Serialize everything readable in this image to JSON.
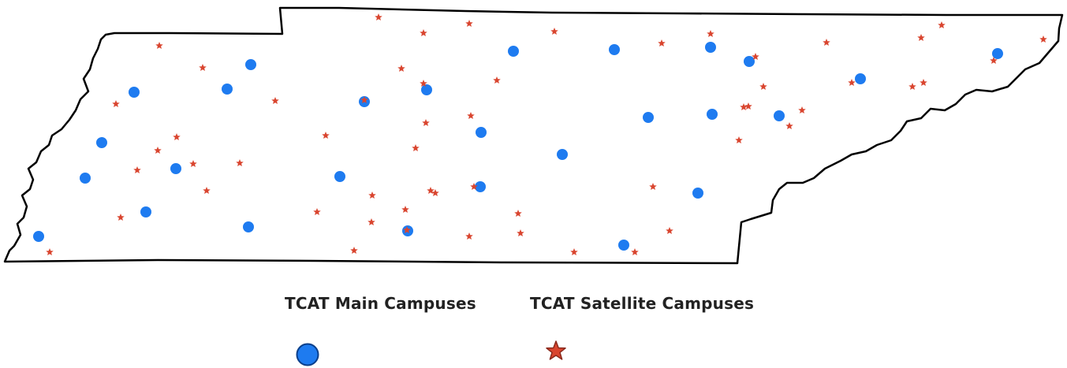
{
  "legend": {
    "main_label": "TCAT Main Campuses",
    "satellite_label": "TCAT Satellite Campuses"
  },
  "colors": {
    "main_fill": "#1E7BF0",
    "main_stroke": "#0B3F8A",
    "satellite_fill": "#D9452F",
    "satellite_stroke": "#8A2A1C",
    "border": "#000000"
  },
  "icons": {
    "main_campus": "blue-dot-icon",
    "satellite_campus": "red-star-icon"
  }
}
